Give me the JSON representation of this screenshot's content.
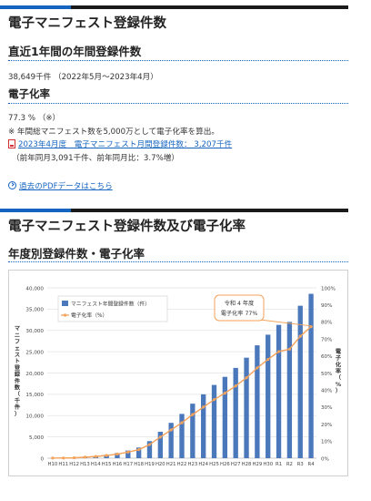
{
  "section1": {
    "title": "電子マニフェスト登録件数",
    "subtitle_annual": "直近1年間の年間登録件数",
    "annual_value": "38,649千件 （2022年5月～2023年4月）",
    "subtitle_rate": "電子化率",
    "rate_value": "77.3 % （※）",
    "rate_note": "※ 年間総マニフェスト数を5,000万として電子化率を算出。",
    "monthly_link": "2023年4月度　電子マニフェスト月間登録件数：  3,207千件",
    "monthly_note": "（前年同月3,091千件、前年同月比：3.7%増）",
    "pdf_link": "過去のPDFデータはこちら"
  },
  "section2": {
    "title": "電子マニフェスト登録件数及び電子化率",
    "subtitle": "年度別登録件数・電子化率"
  },
  "colors": {
    "accent_blue": "#1565c0",
    "bar_blue": "#4a78bb",
    "line_orange": "#f5a25a",
    "pdf_red": "#d32f2f"
  },
  "icons": {
    "pdf": "pdf-file-icon",
    "circle_arrow": "circle-arrow-icon"
  },
  "chart_data": {
    "type": "bar",
    "title": "",
    "categories": [
      "H10",
      "H11",
      "H12",
      "H13",
      "H14",
      "H15",
      "H16",
      "H17",
      "H18",
      "H19",
      "H20",
      "H21",
      "H22",
      "H23",
      "H24",
      "H25",
      "H26",
      "H27",
      "H28",
      "H29",
      "H30",
      "R1",
      "R2",
      "R3",
      "R4"
    ],
    "left_axis_label": "マニフェスト登録件数（千件）",
    "right_axis_label": "電子化率（%）",
    "left_ticks": [
      "0",
      "5,000",
      "10,000",
      "15,000",
      "20,000",
      "25,000",
      "30,000",
      "35,000",
      "40,000"
    ],
    "right_ticks": [
      "0%",
      "10%",
      "20%",
      "30%",
      "40%",
      "50%",
      "60%",
      "70%",
      "80%",
      "90%",
      "100%"
    ],
    "ylim_left": [
      0,
      40000
    ],
    "ylim_right": [
      0,
      100
    ],
    "grid": true,
    "legend_position": "top-left",
    "series": [
      {
        "name": "マニフェスト年間登録件数（件）",
        "type": "bar",
        "axis": "left",
        "values": [
          20,
          40,
          60,
          300,
          500,
          800,
          1200,
          1800,
          2500,
          4000,
          6200,
          8300,
          10400,
          12800,
          15000,
          17200,
          19100,
          21200,
          23600,
          26500,
          29000,
          31300,
          32000,
          35800,
          38600
        ]
      },
      {
        "name": "電子化率（%）",
        "type": "line",
        "axis": "right",
        "values": [
          0.1,
          0.1,
          0.2,
          0.6,
          1.0,
          1.6,
          2.4,
          3.6,
          5.0,
          8.0,
          12.4,
          16.6,
          20.8,
          25.6,
          30.0,
          34.4,
          38.2,
          42.4,
          47.2,
          53.0,
          58.0,
          62.6,
          64.0,
          71.6,
          77.2
        ]
      }
    ],
    "annotation": {
      "line1": "令和 4 年度",
      "line2": "電子化率 77%"
    }
  }
}
